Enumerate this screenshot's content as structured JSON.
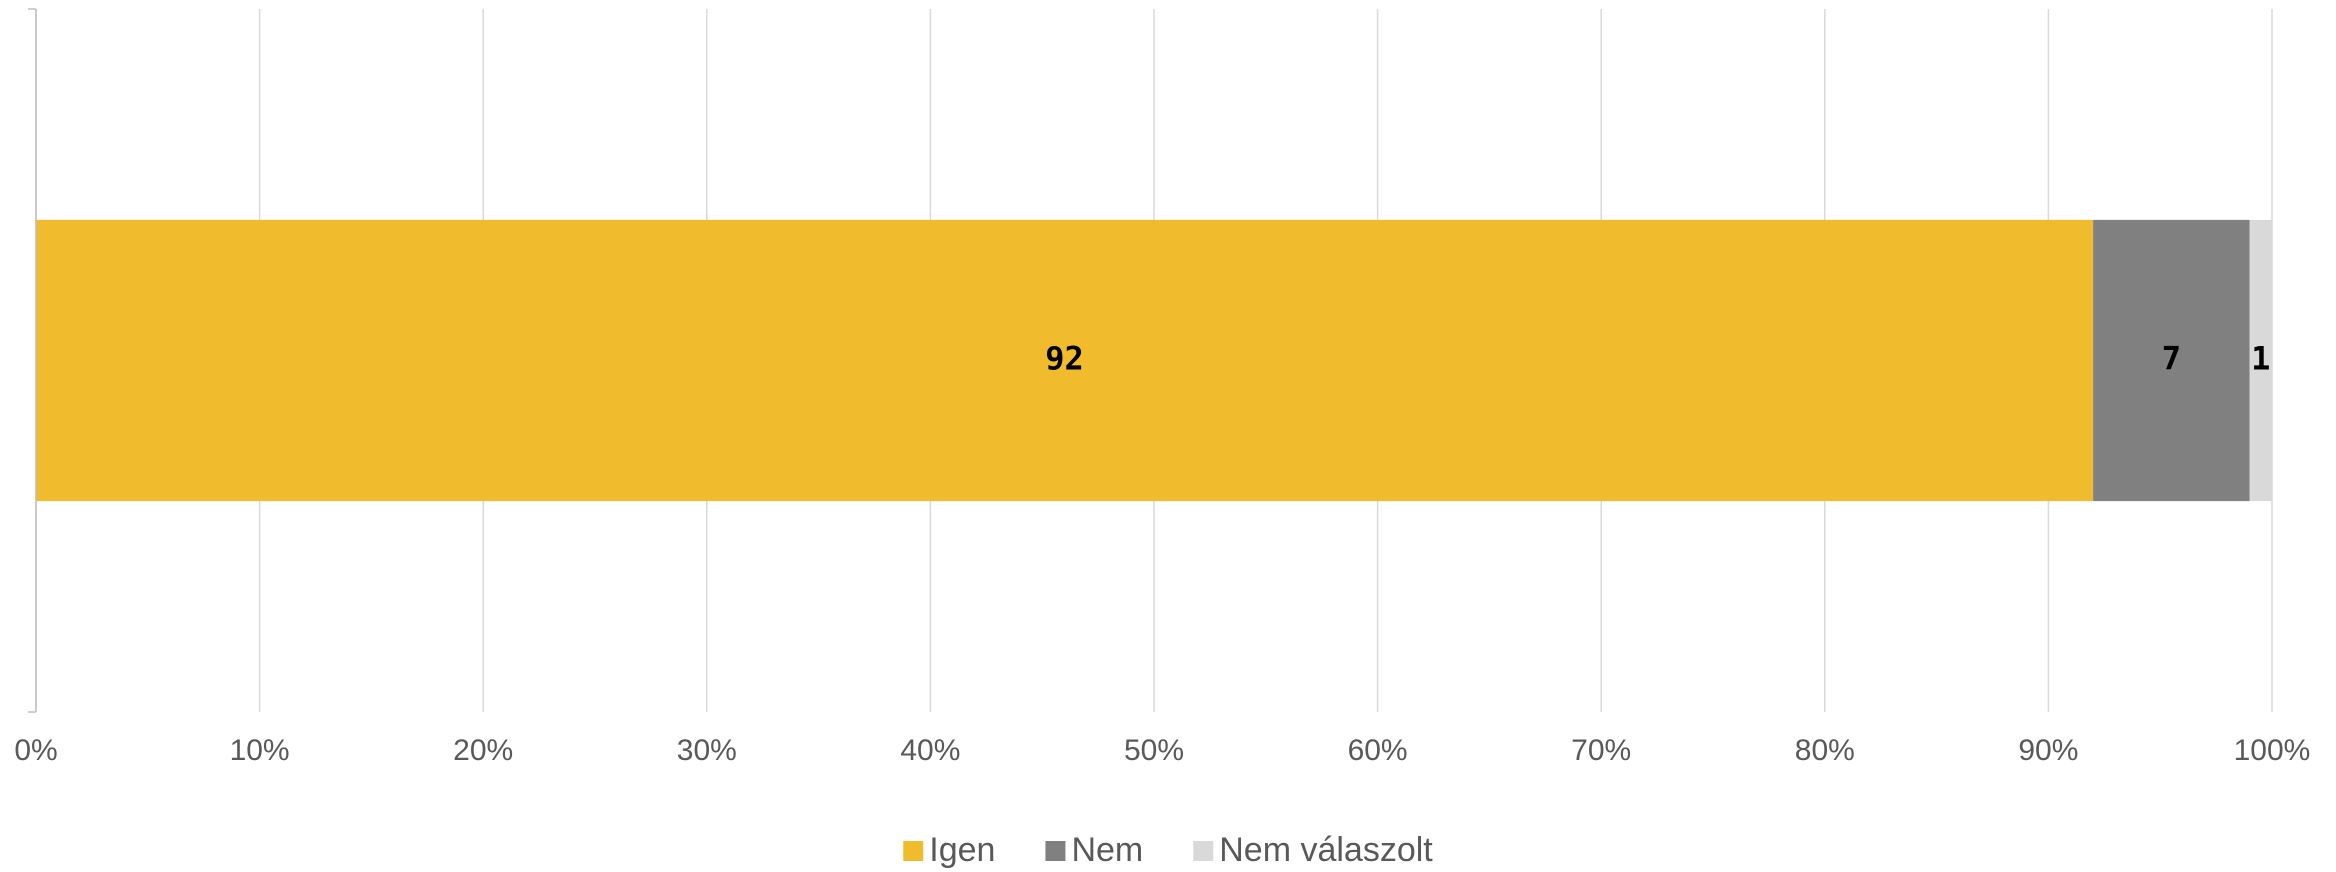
{
  "chart_data": {
    "type": "stacked-bar-horizontal",
    "categories": [
      null
    ],
    "series": [
      {
        "name": "Igen",
        "color": "#F0BC2E",
        "values": [
          92
        ]
      },
      {
        "name": "Nem",
        "color": "#808080",
        "values": [
          7
        ]
      },
      {
        "name": "Nem válaszolt",
        "color": "#D9D9D9",
        "values": [
          1
        ]
      }
    ],
    "xlim": [
      0,
      100
    ],
    "xticks": [
      {
        "value": 0,
        "label": "0%"
      },
      {
        "value": 10,
        "label": "10%"
      },
      {
        "value": 20,
        "label": "20%"
      },
      {
        "value": 30,
        "label": "30%"
      },
      {
        "value": 40,
        "label": "40%"
      },
      {
        "value": 50,
        "label": "50%"
      },
      {
        "value": 60,
        "label": "60%"
      },
      {
        "value": 70,
        "label": "70%"
      },
      {
        "value": 80,
        "label": "80%"
      },
      {
        "value": 90,
        "label": "90%"
      },
      {
        "value": 100,
        "label": "100%"
      }
    ],
    "grid": true,
    "legend": "bottom"
  }
}
